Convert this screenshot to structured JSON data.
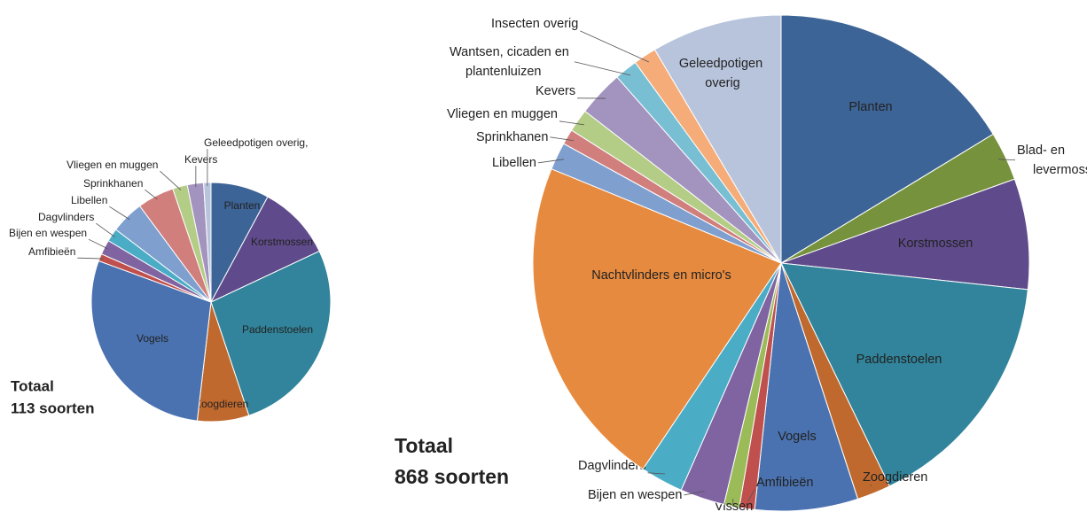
{
  "chart_data": [
    {
      "type": "pie",
      "categories": [
        "Planten",
        "Korstmossen",
        "Paddenstoelen",
        "Zoogdieren",
        "Vogels",
        "Amfibieën",
        "Bijen en wespen",
        "Dagvlinders",
        "Libellen",
        "Sprinkhanen",
        "Vliegen en muggen",
        "Kevers",
        "Geleedpotigen overig,"
      ],
      "values": [
        7.9,
        10.2,
        27,
        7,
        28.9,
        1,
        2,
        1.8,
        4.5,
        5,
        2,
        2.2,
        1
      ],
      "colors": [
        "#3d6496",
        "#5f4b8b",
        "#31849b",
        "#c0692e",
        "#4a72b0",
        "#c0504d",
        "#8064a2",
        "#4bacc6",
        "#7f9fcf",
        "#d07f7d",
        "#b3cc86",
        "#a393bf",
        "#b8c4dc"
      ],
      "total_label": "Totaal",
      "total_count": "113 soorten"
    },
    {
      "type": "pie",
      "categories": [
        "Planten",
        "Blad- en levermossen",
        "Korstmossen",
        "Paddenstoelen",
        "Zoogdieren",
        "Vogels",
        "Amfibieën",
        "Vissen",
        "Bijen en wespen",
        "Dagvlinders",
        "Nachtvlinders en micro's",
        "Libellen",
        "Sprinkhanen",
        "Vliegen en muggen",
        "Kevers",
        "Wantsen, cicaden en plantenluizen",
        "Insecten overig",
        "Geleedpotigen overig"
      ],
      "values": [
        16.3,
        3.2,
        7.2,
        16.1,
        2.2,
        6.7,
        1,
        1,
        2.9,
        2.8,
        21.8,
        1.8,
        1,
        1.5,
        3,
        1.5,
        1.5,
        8.5
      ],
      "colors": [
        "#3d6496",
        "#76923c",
        "#5f4b8b",
        "#31849b",
        "#c0692e",
        "#4a72b0",
        "#c0504d",
        "#9bbb59",
        "#8064a2",
        "#4bacc6",
        "#e68a3f",
        "#7f9fcf",
        "#d07f7d",
        "#b3cc86",
        "#a393bf",
        "#79bfd3",
        "#f5ac79",
        "#b8c4dc"
      ],
      "total_label": "Totaal",
      "total_count": "868 soorten"
    }
  ]
}
